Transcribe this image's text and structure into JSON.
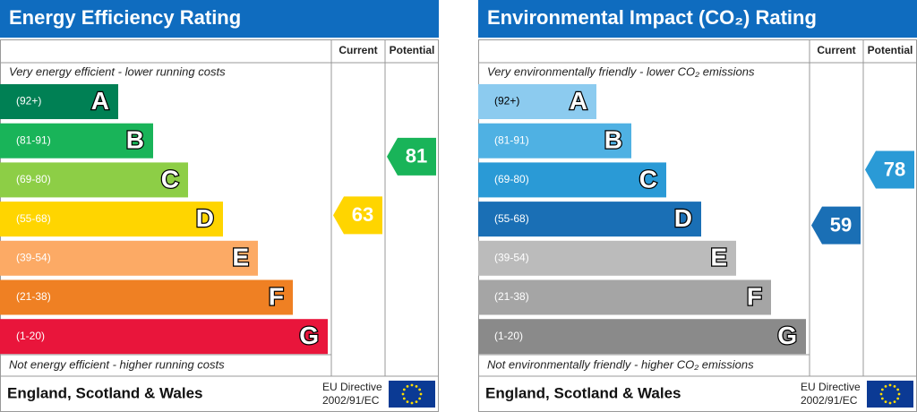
{
  "panels": [
    {
      "title": "Energy Efficiency Rating",
      "columns": [
        "Current",
        "Potential"
      ],
      "top_note": "Very energy efficient - lower running costs",
      "bottom_note": "Not energy efficient - higher running costs",
      "bands": [
        {
          "range": "(92+)",
          "letter": "A",
          "color": "#008054",
          "text_color": "#ffffff"
        },
        {
          "range": "(81-91)",
          "letter": "B",
          "color": "#19b459",
          "text_color": "#ffffff"
        },
        {
          "range": "(69-80)",
          "letter": "C",
          "color": "#8dce46",
          "text_color": "#ffffff"
        },
        {
          "range": "(55-68)",
          "letter": "D",
          "color": "#ffd500",
          "text_color": "#ffffff"
        },
        {
          "range": "(39-54)",
          "letter": "E",
          "color": "#fcaa65",
          "text_color": "#ffffff"
        },
        {
          "range": "(21-38)",
          "letter": "F",
          "color": "#ef8023",
          "text_color": "#ffffff"
        },
        {
          "range": "(1-20)",
          "letter": "G",
          "color": "#e9153b",
          "text_color": "#ffffff"
        }
      ],
      "current": 63,
      "potential": 81,
      "footer": {
        "region": "England, Scotland & Wales",
        "directive": "EU Directive",
        "directive_number": "2002/91/EC"
      }
    },
    {
      "title": "Environmental Impact (CO₂) Rating",
      "columns": [
        "Current",
        "Potential"
      ],
      "top_note": "Very environmentally friendly - lower CO₂ emissions",
      "bottom_note": "Not environmentally friendly - higher CO₂ emissions",
      "bands": [
        {
          "range": "(92+)",
          "letter": "A",
          "color": "#8ccbef",
          "text_color": "#000000"
        },
        {
          "range": "(81-91)",
          "letter": "B",
          "color": "#4fb1e3",
          "text_color": "#ffffff"
        },
        {
          "range": "(69-80)",
          "letter": "C",
          "color": "#2a9ad6",
          "text_color": "#ffffff"
        },
        {
          "range": "(55-68)",
          "letter": "D",
          "color": "#1a6fb5",
          "text_color": "#ffffff"
        },
        {
          "range": "(39-54)",
          "letter": "E",
          "color": "#bbbbbb",
          "text_color": "#ffffff"
        },
        {
          "range": "(21-38)",
          "letter": "F",
          "color": "#a5a5a5",
          "text_color": "#ffffff"
        },
        {
          "range": "(1-20)",
          "letter": "G",
          "color": "#8a8a8a",
          "text_color": "#ffffff"
        }
      ],
      "current": 59,
      "potential": 78,
      "footer": {
        "region": "England, Scotland & Wales",
        "directive": "EU Directive",
        "directive_number": "2002/91/EC"
      }
    }
  ]
}
